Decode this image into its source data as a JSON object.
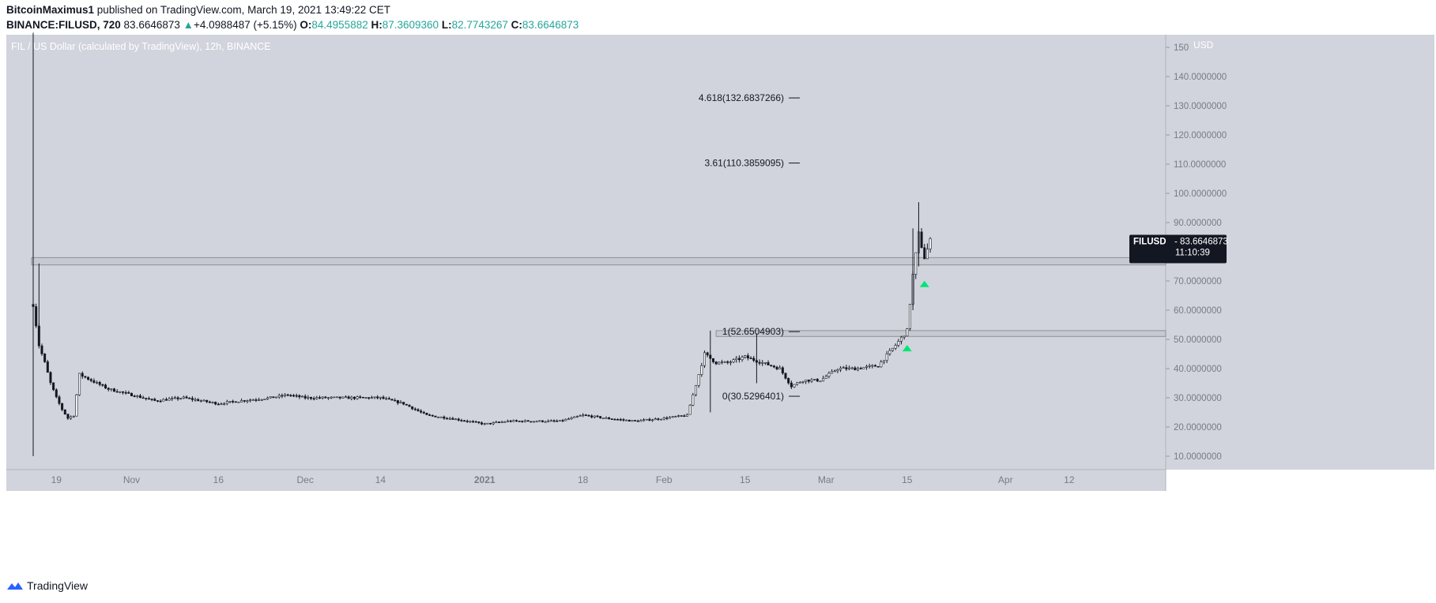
{
  "header": {
    "author": "BitcoinMaximus1",
    "published_text": "published on TradingView.com, March 19, 2021 13:49:22 CET",
    "symbol": "BINANCE:FILUSD, 720",
    "last": "83.6646873",
    "change": "+4.0988487 (+5.15%)",
    "o_label": "O:",
    "o_value": "84.4955882",
    "h_label": "H:",
    "h_value": "87.3609360",
    "l_label": "L:",
    "l_value": "82.7743267",
    "c_label": "C:",
    "c_value": "83.6646873"
  },
  "chart_data": {
    "type": "candlestick",
    "title": "FIL / US Dollar (calculated by TradingView), 12h, BINANCE",
    "currency_label": "USD",
    "ylim": [
      5,
      155
    ],
    "y_ticks": [
      10,
      20,
      30,
      40,
      50,
      60,
      70,
      80,
      90,
      100,
      110,
      120,
      130,
      140,
      150
    ],
    "y_tick_labels": [
      "10.0000000",
      "20.0000000",
      "30.0000000",
      "40.0000000",
      "50.0000000",
      "60.0000000",
      "70.0000000",
      "80.0000000",
      "90.0000000",
      "100.0000000",
      "110.0000000",
      "120.0000000",
      "130.0000000",
      "140.0000000",
      "150"
    ],
    "x_tick_labels": [
      "19",
      "Nov",
      "16",
      "Dec",
      "14",
      "2021",
      "18",
      "Feb",
      "15",
      "Mar",
      "15",
      "Apr",
      "12"
    ],
    "x_tick_dates": [
      "2020-10-19",
      "2020-11-01",
      "2020-11-16",
      "2020-12-01",
      "2020-12-14",
      "2021-01-01",
      "2021-01-18",
      "2021-02-01",
      "2021-02-15",
      "2021-03-01",
      "2021-03-15",
      "2021-04-01",
      "2021-04-12"
    ],
    "price_series": {
      "name": "FILUSD",
      "dates": [
        "2020-10-15",
        "2020-10-16",
        "2020-10-17",
        "2020-10-18",
        "2020-10-19",
        "2020-10-20",
        "2020-10-21",
        "2020-10-22",
        "2020-10-23",
        "2020-10-25",
        "2020-10-28",
        "2020-11-01",
        "2020-11-05",
        "2020-11-10",
        "2020-11-16",
        "2020-11-20",
        "2020-11-25",
        "2020-11-28",
        "2020-12-01",
        "2020-12-05",
        "2020-12-09",
        "2020-12-14",
        "2020-12-18",
        "2020-12-22",
        "2020-12-26",
        "2021-01-01",
        "2021-01-05",
        "2021-01-10",
        "2021-01-14",
        "2021-01-18",
        "2021-01-22",
        "2021-01-27",
        "2021-02-01",
        "2021-02-05",
        "2021-02-08",
        "2021-02-10",
        "2021-02-12",
        "2021-02-15",
        "2021-02-18",
        "2021-02-21",
        "2021-02-23",
        "2021-02-25",
        "2021-02-28",
        "2021-03-03",
        "2021-03-06",
        "2021-03-10",
        "2021-03-13",
        "2021-03-15",
        "2021-03-16",
        "2021-03-17",
        "2021-03-18",
        "2021-03-19"
      ],
      "close": [
        62,
        48,
        42,
        35,
        30,
        26,
        23,
        24,
        38,
        36,
        33,
        31,
        29,
        30,
        28,
        29,
        30,
        31,
        30,
        30,
        30,
        30,
        28,
        24,
        23,
        21,
        22,
        22,
        22,
        24,
        23,
        22,
        23,
        24,
        45,
        42,
        42,
        44,
        42,
        40,
        34,
        36,
        36,
        40,
        40,
        41,
        48,
        53,
        72,
        86,
        78,
        83.66
      ]
    },
    "last_price_label": "FILUSD",
    "last_price": "83.6646873",
    "countdown": "11:10:39",
    "zones": [
      {
        "from": 75.5,
        "to": 78
      },
      {
        "from": 51,
        "to": 53
      }
    ],
    "fib_levels": [
      {
        "label": "4.618(132.6837266)",
        "value": 132.6837266
      },
      {
        "label": "3.61(110.3859095)",
        "value": 110.3859095
      },
      {
        "label": "1(52.6504903)",
        "value": 52.6504903
      },
      {
        "label": "0(30.5296401)",
        "value": 30.5296401
      }
    ],
    "markers": [
      {
        "date": "2021-03-15",
        "value": 47,
        "color": "#00e676"
      },
      {
        "date": "2021-03-18",
        "value": 69,
        "color": "#00e676"
      }
    ],
    "colors": {
      "background": "#d1d4dc",
      "candle": "#131722",
      "axis_text": "#787b86",
      "zone_fill": "#c3c6ce",
      "zone_border": "#8e9199"
    }
  },
  "footer": {
    "brand": "TradingView"
  }
}
